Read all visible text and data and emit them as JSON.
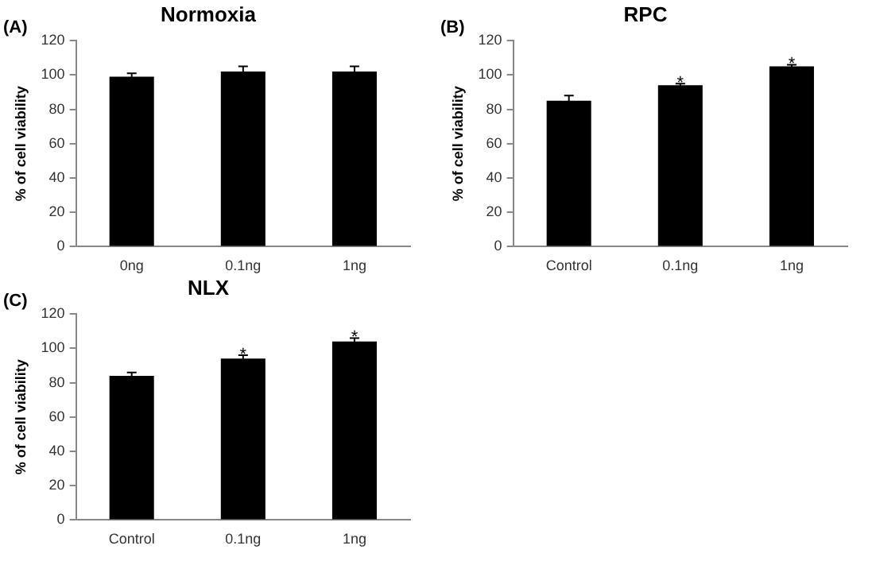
{
  "chart_data": [
    {
      "type": "bar",
      "title": "Normoxia",
      "ylabel": "% of cell viability",
      "categories": [
        "0ng",
        "0.1ng",
        "1ng"
      ],
      "values": [
        99,
        102,
        102
      ],
      "errors": [
        2,
        3,
        3
      ],
      "color": "#000000",
      "ylim": [
        0,
        120
      ],
      "yticks": [
        0,
        20,
        40,
        60,
        80,
        100,
        120
      ],
      "grid": false,
      "legend": false,
      "annotations": [
        "(A)"
      ]
    },
    {
      "type": "bar",
      "title": "RPC",
      "ylabel": "% of cell viability",
      "categories": [
        "Control",
        "0.1ng",
        "1ng"
      ],
      "values": [
        85,
        94,
        105
      ],
      "errors": [
        3,
        1,
        1
      ],
      "color": "#000000",
      "ylim": [
        0,
        120
      ],
      "yticks": [
        0,
        20,
        40,
        60,
        80,
        100,
        120
      ],
      "grid": false,
      "legend": false,
      "annotations": [
        "(B)",
        {
          "text": "*",
          "x": "0.1ng",
          "y": 97
        },
        {
          "text": "*",
          "x": "1ng",
          "y": 108
        }
      ]
    },
    {
      "type": "bar",
      "title": "NLX",
      "ylabel": "% of cell viability",
      "categories": [
        "Control",
        "0.1ng",
        "1ng"
      ],
      "values": [
        84,
        94,
        104
      ],
      "errors": [
        2,
        2,
        2
      ],
      "color": "#000000",
      "ylim": [
        0,
        120
      ],
      "yticks": [
        0,
        20,
        40,
        60,
        80,
        100,
        120
      ],
      "grid": false,
      "legend": false,
      "annotations": [
        "(C)",
        {
          "text": "*",
          "x": "0.1ng",
          "y": 98
        },
        {
          "text": "*",
          "x": "1ng",
          "y": 108
        }
      ]
    }
  ]
}
